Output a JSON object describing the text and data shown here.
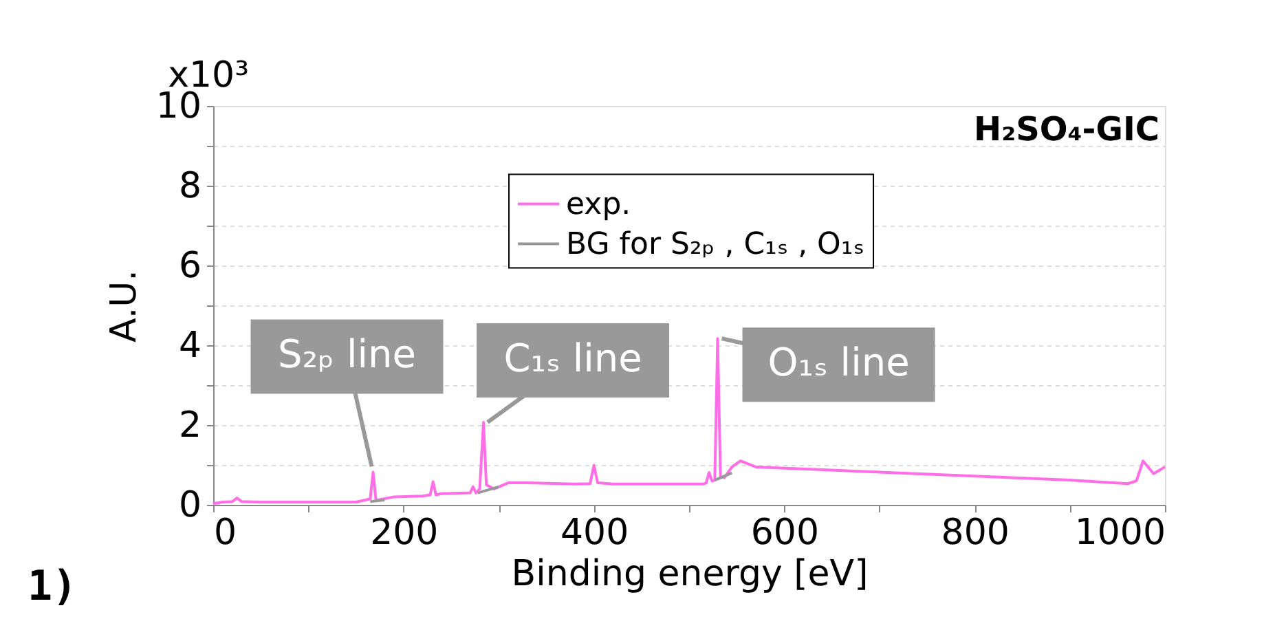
{
  "chart_data": {
    "type": "line",
    "title": "H₂SO₄-GIC",
    "xlabel": "Binding energy [eV]",
    "ylabel": "A.U.",
    "xlim": [
      0,
      1000
    ],
    "xticks": [
      0,
      {
        "value": 100,
        "label": null
      },
      200,
      {
        "value": 300,
        "label": null
      },
      400,
      {
        "value": 500,
        "label": null
      },
      600,
      {
        "value": 700,
        "label": null
      },
      800,
      {
        "value": 900,
        "label": null
      },
      1000
    ],
    "ylim": [
      0,
      10
    ],
    "yticks": [
      0,
      {
        "value": 1,
        "label": null
      },
      2,
      {
        "value": 3,
        "label": null
      },
      4,
      {
        "value": 5,
        "label": null
      },
      6,
      {
        "value": 7,
        "label": null
      },
      8,
      {
        "value": 9,
        "label": null
      },
      10
    ],
    "grid": "y",
    "legend": "top right",
    "line_style": "solid",
    "series": [
      {
        "name": "exp.",
        "color": "#ff6ee6",
        "x": [
          0,
          10,
          20,
          25,
          30,
          50,
          100,
          150,
          160,
          165,
          168,
          171,
          175,
          190,
          220,
          228,
          231,
          234,
          240,
          270,
          273,
          276,
          280,
          284,
          287,
          295,
          310,
          330,
          380,
          396,
          400,
          404,
          420,
          500,
          515,
          518,
          521,
          524,
          527,
          530,
          533,
          537,
          545,
          554,
          570,
          641,
          700,
          800,
          900,
          961,
          970,
          977,
          988,
          1000
        ],
        "values": [
          0.03,
          0.07,
          0.08,
          0.17,
          0.08,
          0.07,
          0.07,
          0.07,
          0.12,
          0.15,
          0.82,
          0.12,
          0.13,
          0.2,
          0.22,
          0.25,
          0.58,
          0.25,
          0.28,
          0.3,
          0.45,
          0.3,
          0.4,
          2.07,
          0.5,
          0.4,
          0.55,
          0.55,
          0.52,
          0.53,
          0.99,
          0.55,
          0.52,
          0.52,
          0.52,
          0.55,
          0.81,
          0.6,
          0.62,
          4.17,
          0.7,
          0.68,
          0.95,
          1.1,
          0.95,
          0.88,
          0.82,
          0.72,
          0.62,
          0.53,
          0.6,
          1.1,
          0.78,
          0.95
        ]
      },
      {
        "name": "BG for S₂ₚ , C₁ₛ , O₁ₛ",
        "color": "#999999",
        "x": [
          165,
          180,
          181,
          278,
          300,
          301,
          527,
          545
        ],
        "values": [
          0.08,
          0.12,
          null,
          0.3,
          0.45,
          null,
          0.62,
          0.8
        ]
      }
    ],
    "annotations": [
      {
        "text": "S₂ₚ line",
        "x": 168,
        "y": 0.82
      },
      {
        "text": "C₁ₛ line",
        "x": 284,
        "y": 2.07
      },
      {
        "text": "O₁ₛ line",
        "x": 530,
        "y": 4.17
      },
      "x10³",
      "1)"
    ]
  }
}
